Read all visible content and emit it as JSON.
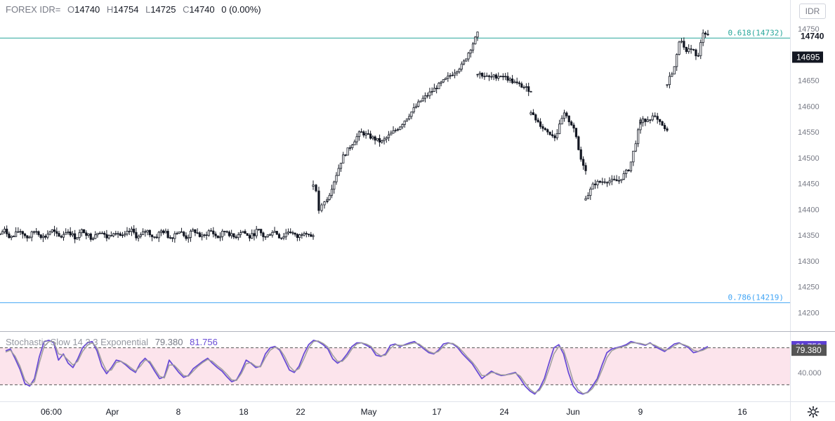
{
  "header": {
    "symbol": "FOREX IDR=",
    "o_label": "O",
    "o": "14740",
    "h_label": "H",
    "h": "14754",
    "l_label": "L",
    "l": "14725",
    "c_label": "C",
    "c": "14740",
    "change": "0 (0.00%)"
  },
  "symbol_button": "IDR",
  "indicator": {
    "name": "Stochastic Slow 14 3 3 Exponential",
    "d_value": "79.380",
    "k_value": "81.756"
  },
  "colors": {
    "candle": "#131722",
    "fib618": "#26a69a",
    "fib786": "#42a5f5",
    "k_line": "#6a4cd6",
    "d_line": "#9e9e9e",
    "band": "#fce4ec",
    "k_badge": "#5d3fd3"
  },
  "chart_data": [
    {
      "type": "candlestick",
      "title": "",
      "ylim": [
        14180,
        14765
      ],
      "y_ticks": [
        "14750",
        "14700",
        "14650",
        "14600",
        "14550",
        "14500",
        "14450",
        "14400",
        "14350",
        "14300",
        "14250",
        "14200"
      ],
      "x_ticks": [
        "06:00",
        "Apr",
        "8",
        "18",
        "22",
        "May",
        "17",
        "24",
        "Jun",
        "9",
        "16"
      ],
      "price_labels": [
        "14740",
        "14695"
      ],
      "fib_levels": [
        {
          "label": "0.618(14732)",
          "value": 14732
        },
        {
          "label": "0.786(14219)",
          "value": 14219
        }
      ],
      "segments": [
        {
          "kind": "flat",
          "level": 14352,
          "amp": 10
        },
        {
          "kind": "gap",
          "open": 14445,
          "path": [
            [
              0,
              14445
            ],
            [
              0.12,
              14462
            ],
            [
              0.3,
              14395
            ],
            [
              0.5,
              14402
            ],
            [
              0.72,
              14410
            ],
            [
              1,
              14418
            ]
          ]
        },
        {
          "kind": "trend",
          "path": [
            [
              0,
              14418
            ],
            [
              0.1,
              14500
            ],
            [
              0.22,
              14550
            ],
            [
              0.36,
              14530
            ],
            [
              0.48,
              14560
            ],
            [
              0.62,
              14610
            ],
            [
              0.78,
              14650
            ],
            [
              0.9,
              14680
            ],
            [
              1,
              14740
            ]
          ]
        },
        {
          "kind": "trend",
          "path": [
            [
              0,
              14665
            ],
            [
              0.2,
              14655
            ],
            [
              0.45,
              14660
            ],
            [
              0.7,
              14645
            ],
            [
              1,
              14630
            ]
          ]
        },
        {
          "kind": "trend",
          "path": [
            [
              0,
              14585
            ],
            [
              0.25,
              14555
            ],
            [
              0.45,
              14540
            ],
            [
              0.6,
              14585
            ],
            [
              0.78,
              14560
            ],
            [
              0.9,
              14500
            ],
            [
              1,
              14478
            ]
          ]
        },
        {
          "kind": "trend",
          "path": [
            [
              0,
              14420
            ],
            [
              0.15,
              14450
            ],
            [
              0.35,
              14455
            ],
            [
              0.6,
              14455
            ],
            [
              0.8,
              14480
            ],
            [
              1,
              14570
            ]
          ]
        },
        {
          "kind": "trend",
          "path": [
            [
              0,
              14570
            ],
            [
              0.5,
              14580
            ],
            [
              1,
              14550
            ]
          ]
        },
        {
          "kind": "trend",
          "path": [
            [
              0,
              14645
            ],
            [
              0.2,
              14680
            ],
            [
              0.32,
              14740
            ],
            [
              0.45,
              14700
            ],
            [
              0.6,
              14715
            ],
            [
              0.75,
              14690
            ],
            [
              0.88,
              14745
            ],
            [
              1,
              14740
            ]
          ]
        }
      ]
    },
    {
      "type": "line",
      "title": "",
      "ylim": [
        0,
        100
      ],
      "bands": [
        20,
        80
      ],
      "y_ticks": [
        "40.000"
      ],
      "value_labels": [
        "81.756",
        "79.380"
      ],
      "series": [
        {
          "name": "",
          "points": [
            75,
            78,
            62,
            45,
            22,
            18,
            30,
            65,
            90,
            92,
            88,
            60,
            70,
            55,
            48,
            62,
            80,
            88,
            90,
            75,
            50,
            38,
            48,
            60,
            58,
            52,
            45,
            40,
            55,
            63,
            55,
            42,
            30,
            33,
            60,
            50,
            40,
            32,
            35,
            46,
            52,
            58,
            63,
            55,
            48,
            42,
            33,
            25,
            28,
            42,
            60,
            55,
            48,
            50,
            70,
            80,
            82,
            76,
            60,
            44,
            40,
            50,
            70,
            85,
            92,
            90,
            85,
            78,
            62,
            55,
            60,
            70,
            82,
            88,
            88,
            84,
            80,
            68,
            66,
            70,
            84,
            86,
            82,
            85,
            88,
            90,
            84,
            78,
            72,
            70,
            76,
            86,
            88,
            86,
            80,
            70,
            62,
            54,
            42,
            30,
            36,
            42,
            38,
            35,
            36,
            38,
            40,
            30,
            18,
            10,
            5,
            14,
            30,
            56,
            80,
            85,
            70,
            40,
            18,
            8,
            5,
            8,
            18,
            30,
            52,
            72,
            78,
            80,
            82,
            85,
            90,
            88,
            86,
            84,
            88,
            82,
            78,
            74,
            80,
            86,
            88,
            84,
            80,
            72,
            74,
            78,
            82
          ]
        },
        {
          "name": "",
          "points": [
            73,
            76,
            66,
            50,
            28,
            20,
            25,
            55,
            82,
            90,
            90,
            70,
            68,
            60,
            52,
            58,
            74,
            84,
            88,
            80,
            58,
            42,
            44,
            56,
            58,
            54,
            48,
            42,
            50,
            60,
            58,
            46,
            34,
            31,
            52,
            52,
            44,
            35,
            34,
            42,
            50,
            56,
            61,
            58,
            51,
            45,
            37,
            28,
            27,
            38,
            54,
            56,
            50,
            49,
            64,
            76,
            81,
            78,
            66,
            50,
            42,
            46,
            62,
            80,
            90,
            91,
            87,
            81,
            68,
            58,
            58,
            66,
            78,
            86,
            88,
            86,
            82,
            72,
            67,
            68,
            79,
            85,
            84,
            84,
            86,
            88,
            86,
            80,
            74,
            71,
            74,
            82,
            87,
            87,
            82,
            74,
            65,
            57,
            47,
            35,
            35,
            40,
            39,
            36,
            36,
            37,
            39,
            34,
            23,
            13,
            7,
            11,
            24,
            46,
            70,
            82,
            76,
            52,
            26,
            12,
            6,
            7,
            14,
            26,
            44,
            64,
            75,
            79,
            81,
            83,
            88,
            88,
            87,
            85,
            87,
            84,
            80,
            76,
            78,
            83,
            87,
            85,
            82,
            76,
            74,
            76,
            80
          ]
        }
      ]
    }
  ]
}
